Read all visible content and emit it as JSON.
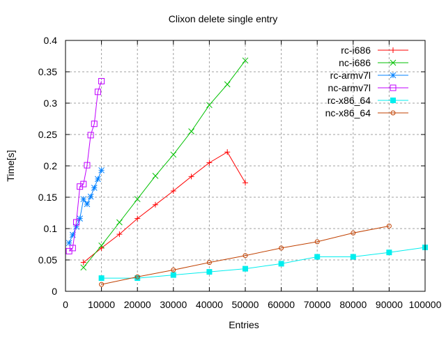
{
  "chart_data": {
    "type": "line",
    "title": "Clixon delete single entry",
    "xlabel": "Entries",
    "ylabel": "Time[s]",
    "xlim": [
      0,
      100000
    ],
    "ylim": [
      0,
      0.4
    ],
    "xticks": [
      "0",
      "10000",
      "20000",
      "30000",
      "40000",
      "50000",
      "60000",
      "70000",
      "80000",
      "90000",
      "100000"
    ],
    "yticks": [
      "0",
      "0.05",
      "0.1",
      "0.15",
      "0.2",
      "0.25",
      "0.3",
      "0.35",
      "0.4"
    ],
    "grid": true,
    "legend_position": "top-right",
    "series": [
      {
        "name": "rc-i686",
        "color": "#ff0000",
        "marker": "plus",
        "x": [
          5000,
          10000,
          15000,
          20000,
          25000,
          30000,
          35000,
          40000,
          45000,
          50000
        ],
        "y": [
          0.046,
          0.069,
          0.091,
          0.116,
          0.138,
          0.16,
          0.183,
          0.205,
          0.222,
          0.173
        ]
      },
      {
        "name": "nc-i686",
        "color": "#00c000",
        "marker": "cross",
        "x": [
          5000,
          10000,
          15000,
          20000,
          25000,
          30000,
          35000,
          40000,
          45000,
          50000
        ],
        "y": [
          0.038,
          0.073,
          0.11,
          0.147,
          0.184,
          0.218,
          0.255,
          0.297,
          0.33,
          0.368
        ]
      },
      {
        "name": "rc-armv7l",
        "color": "#0080ff",
        "marker": "star",
        "x": [
          1000,
          2000,
          3000,
          4000,
          5000,
          6000,
          7000,
          8000,
          9000,
          10000
        ],
        "y": [
          0.077,
          0.09,
          0.103,
          0.116,
          0.147,
          0.139,
          0.151,
          0.165,
          0.179,
          0.193
        ]
      },
      {
        "name": "nc-armv7l",
        "color": "#c000ff",
        "marker": "square",
        "x": [
          1000,
          2000,
          3000,
          4000,
          5000,
          6000,
          7000,
          8000,
          9000,
          10000
        ],
        "y": [
          0.064,
          0.069,
          0.11,
          0.167,
          0.171,
          0.201,
          0.249,
          0.267,
          0.318,
          0.335
        ]
      },
      {
        "name": "rc-x86_64",
        "color": "#00eeee",
        "marker": "filled-square",
        "x": [
          10000,
          20000,
          30000,
          40000,
          50000,
          60000,
          70000,
          80000,
          90000,
          100000
        ],
        "y": [
          0.021,
          0.021,
          0.026,
          0.031,
          0.036,
          0.044,
          0.055,
          0.055,
          0.062,
          0.07
        ]
      },
      {
        "name": "nc-x86_64",
        "color": "#c04000",
        "marker": "circle",
        "x": [
          10000,
          20000,
          30000,
          40000,
          50000,
          60000,
          70000,
          80000,
          90000
        ],
        "y": [
          0.011,
          0.023,
          0.034,
          0.046,
          0.057,
          0.069,
          0.079,
          0.093,
          0.104
        ]
      }
    ]
  }
}
